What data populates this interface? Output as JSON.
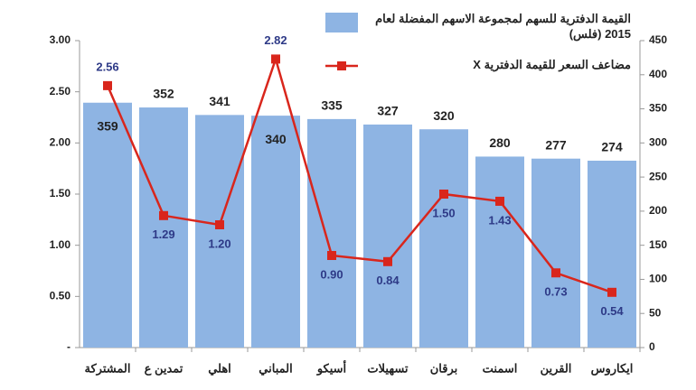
{
  "chart_data": {
    "type": "bar-line",
    "categories": [
      "المشتركة",
      "تمدين ع",
      "اهلي",
      "المباني",
      "أسيكو",
      "تسهيلات",
      "برقان",
      "اسمنت",
      "القرين",
      "ايكاروس"
    ],
    "series": [
      {
        "name": "القيمة الدفترية للسهم لمجموعة الاسهم المفضلة لعام 2015 (فلس)",
        "type": "bar",
        "axis": "y2",
        "color": "#8eb4e3",
        "values": [
          359,
          352,
          341,
          340,
          335,
          327,
          320,
          280,
          277,
          274
        ]
      },
      {
        "name": "مضاعف السعر للقيمة الدفترية X",
        "type": "line",
        "axis": "y",
        "color": "#d9261c",
        "values": [
          2.56,
          1.29,
          1.2,
          2.82,
          0.9,
          0.84,
          1.5,
          1.43,
          0.73,
          0.54
        ],
        "value_labels": [
          "2.56",
          "1.29",
          "1.20",
          "2.82",
          "0.90",
          "0.84",
          "1.50",
          "1.43",
          "0.73",
          "0.54"
        ]
      }
    ],
    "ylim": [
      0,
      3
    ],
    "yticks": [
      {
        "value": 0,
        "label": "-"
      },
      {
        "value": 0.5,
        "label": "0.50"
      },
      {
        "value": 1,
        "label": "1.00"
      },
      {
        "value": 1.5,
        "label": "1.50"
      },
      {
        "value": 2,
        "label": "2.00"
      },
      {
        "value": 2.5,
        "label": "2.50"
      },
      {
        "value": 3,
        "label": "3.00"
      }
    ],
    "y2lim": [
      0,
      450
    ],
    "y2ticks": [
      0,
      50,
      100,
      150,
      200,
      250,
      300,
      350,
      400,
      450
    ]
  }
}
